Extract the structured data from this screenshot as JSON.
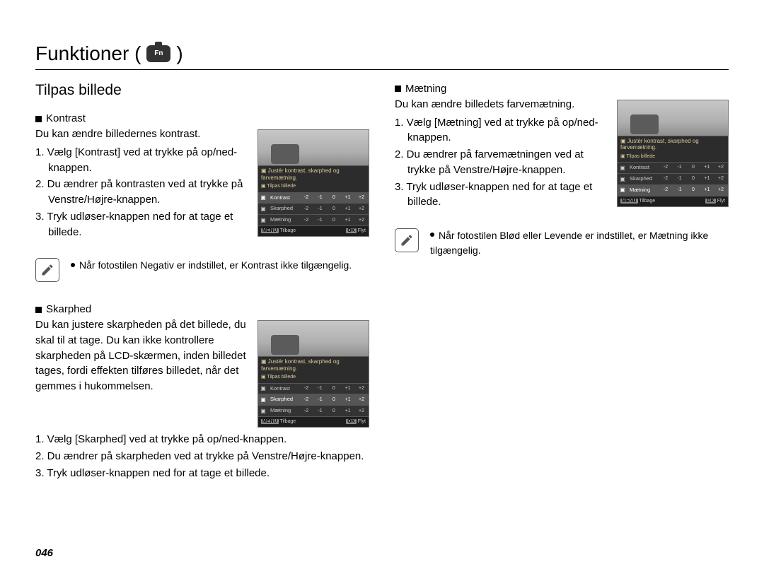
{
  "heading": "Funktioner (",
  "heading_close": ")",
  "fn_label": "Fn",
  "section_title": "Tilpas billede",
  "page_number": "046",
  "screen": {
    "caption_line1": "Justér kontrast, skarphed og farvemætning.",
    "caption_line2": "Tilpas billede",
    "rows": [
      "Kontrast",
      "Skarphed",
      "Mætning"
    ],
    "scale": [
      "-2",
      "-1",
      "0",
      "+1",
      "+2"
    ],
    "footer_left": "Tilbage",
    "footer_right": "Flyt",
    "menu_tag": "MENU",
    "ok_tag": "OK"
  },
  "left": {
    "kontrast": {
      "title": "Kontrast",
      "intro": "Du kan ændre billedernes kontrast.",
      "steps": [
        "1. Vælg [Kontrast] ved at trykke på op/ned-knappen.",
        "2. Du ændrer på kontrasten ved at trykke på Venstre/Højre-knappen.",
        "3. Tryk udløser-knappen ned for at tage et billede."
      ],
      "note": "Når fotostilen Negativ er indstillet, er Kontrast ikke tilgængelig."
    },
    "skarphed": {
      "title": "Skarphed",
      "intro": "Du kan justere skarpheden på det billede, du skal til at tage. Du kan ikke kontrollere skarpheden på LCD-skærmen, inden billedet tages, fordi effekten tilføres billedet, når det gemmes i hukommelsen.",
      "steps": [
        "1. Vælg [Skarphed] ved at trykke på op/ned-knappen.",
        "2. Du ændrer på skarpheden ved at trykke på Venstre/Højre-knappen.",
        "3. Tryk udløser-knappen ned for at tage et billede."
      ]
    }
  },
  "right": {
    "maetning": {
      "title": "Mætning",
      "intro": "Du kan ændre billedets farvemætning.",
      "steps": [
        "1. Vælg [Mætning] ved at trykke på op/ned-knappen.",
        "2. Du ændrer på farvemætningen ved at trykke på Venstre/Højre-knappen.",
        "3. Tryk udløser-knappen ned for at tage et billede."
      ],
      "note": "Når fotostilen Blød eller Levende er indstillet, er Mætning ikke tilgængelig."
    }
  }
}
